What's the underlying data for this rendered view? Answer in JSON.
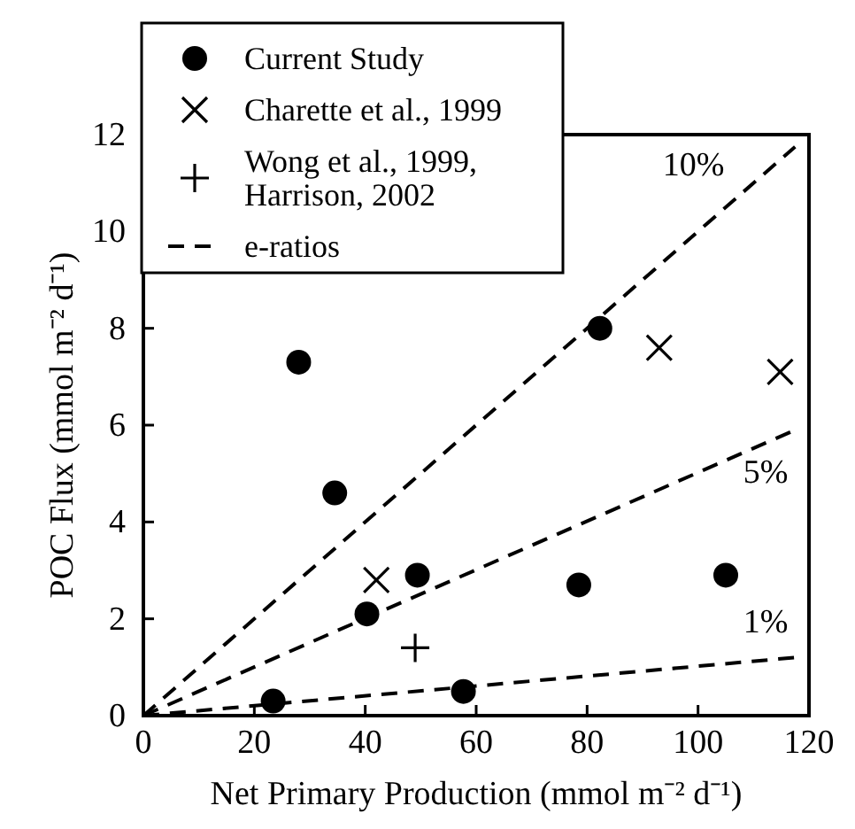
{
  "chart_data": {
    "type": "scatter",
    "xlabel": "Net Primary Production (mmol m⁻² d⁻¹)",
    "ylabel": "POC Flux (mmol m⁻² d⁻¹)",
    "xlim": [
      0,
      120
    ],
    "ylim": [
      0,
      12
    ],
    "xticks": [
      0,
      20,
      40,
      60,
      80,
      100,
      120
    ],
    "yticks": [
      0,
      2,
      4,
      6,
      8,
      10,
      12
    ],
    "grid": false,
    "legend": "top left",
    "series": [
      {
        "name": "Current Study",
        "color": "#000000",
        "marker": "circle",
        "x": [
          28,
          34.5,
          40.3,
          49.4,
          23.4,
          57.7,
          78.5,
          82.3,
          105
        ],
        "values": [
          7.3,
          4.6,
          2.1,
          2.9,
          0.3,
          0.5,
          2.7,
          8,
          2.9
        ]
      },
      {
        "name": "Charette et al., 1999",
        "color": "#000000",
        "marker": "cross",
        "x": [
          42,
          93,
          114.8
        ],
        "values": [
          2.8,
          7.6,
          7.1
        ]
      },
      {
        "name": "Wong et al., 1999, Harrison, 2002",
        "color": "#000000",
        "marker": "plus",
        "x": [
          49
        ],
        "values": [
          1.4
        ]
      },
      {
        "name": "e-ratios",
        "type": "line",
        "color": "#000000",
        "marker": "none",
        "line_style": "dashed",
        "x": [
          0,
          117.5
        ],
        "values": [
          0,
          11.75
        ]
      },
      {
        "type": "line",
        "color": "#000000",
        "marker": "none",
        "line_style": "dashed",
        "x": [
          0,
          117.5
        ],
        "values": [
          0,
          5.9
        ]
      },
      {
        "type": "line",
        "color": "#000000",
        "marker": "none",
        "line_style": "dashed",
        "x": [
          0,
          117.5
        ],
        "values": [
          0,
          1.2
        ]
      }
    ],
    "annotations": [
      "10%",
      "5%",
      "1%"
    ]
  }
}
